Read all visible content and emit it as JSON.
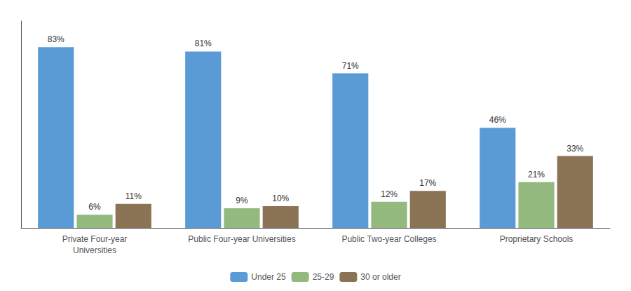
{
  "chart_data": {
    "type": "bar",
    "categories": [
      "Private Four-year\nUniversities",
      "Public Four-year Universities",
      "Public Two-year Colleges",
      "Proprietary Schools"
    ],
    "series": [
      {
        "name": "Under 25",
        "color": "#5B9BD5",
        "values": [
          83,
          81,
          71,
          46
        ],
        "value_labels": [
          "83%",
          "81%",
          "71%",
          "46%"
        ]
      },
      {
        "name": "25-29",
        "color": "#93B97E",
        "values": [
          6,
          9,
          12,
          21
        ],
        "value_labels": [
          "6%",
          "9%",
          "12%",
          "21%"
        ]
      },
      {
        "name": "30 or older",
        "color": "#8B7355",
        "values": [
          11,
          10,
          17,
          33
        ],
        "value_labels": [
          "11%",
          "10%",
          "17%",
          "33%"
        ]
      }
    ],
    "ylim": [
      0,
      95
    ],
    "tick_labels": "x",
    "grid": false,
    "legend": "bottom",
    "data_labels": true
  }
}
